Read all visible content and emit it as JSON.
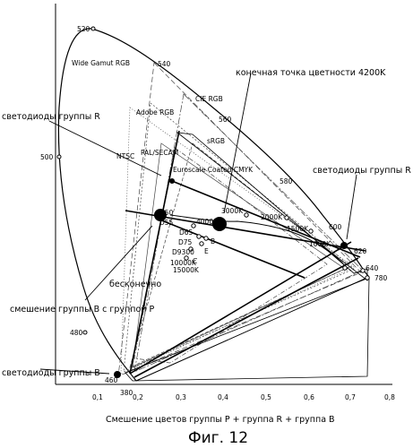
{
  "figure": {
    "caption": "Фиг. 12",
    "x_axis_label": "Смешение цветов группы P + группа R + группа B",
    "x_ticks": [
      "0,1",
      "0,2",
      "0,3",
      "0,4",
      "0,5",
      "0,6",
      "0,7",
      "0,8"
    ],
    "y_ticks": []
  },
  "locus_labels": {
    "w380": "380",
    "w460": "460",
    "w480": "480",
    "w500": "500",
    "w520": "520",
    "w540": "540",
    "w560": "560",
    "w580": "580",
    "w600": "600",
    "w620": "620",
    "w640": "640",
    "w780": "780"
  },
  "gamut_labels": {
    "wide_gamut": "Wide Gamut RGB",
    "adobe": "Adobe RGB",
    "cie": "CIE RGB",
    "srgb": "sRGB",
    "pal_secam": "PAL/SECAM",
    "ntsc": "NTSC",
    "euroscale": "Euroscale Coated CMYK"
  },
  "planckian": {
    "k1000": "1000K",
    "k1500": "1500K",
    "k2000": "2000K",
    "k3000": "3000K",
    "k4000": "4000K"
  },
  "white_points": {
    "d50": "D50",
    "d55": "D55",
    "d65": "D65",
    "d75": "D75",
    "d9300": "D9300",
    "k10000": "10000K",
    "k15000": "15000K",
    "b": "B",
    "e": "E",
    "c": "C"
  },
  "annotations": {
    "endpoint_4200k": "конечная точка цветности 4200K",
    "leds_group_r_left": "светодиоды группы R",
    "leds_group_r_right": "светодиоды группы R",
    "infinity": "бесконечно",
    "mix_b_p": "смешение группы B с группой P",
    "leds_group_b": "светодиоды группы B"
  },
  "chart_data": {
    "type": "scatter",
    "xlim": [
      0,
      0.8
    ],
    "ylim": [
      0,
      0.85
    ],
    "points": [
      {
        "label": "светодиоды группы R",
        "x": 0.69,
        "y": 0.31
      },
      {
        "label": "светодиоды группы B",
        "x": 0.155,
        "y": 0.03
      },
      {
        "label": "конечная точка цветности 4200K",
        "x": 0.375,
        "y": 0.385
      }
    ]
  }
}
